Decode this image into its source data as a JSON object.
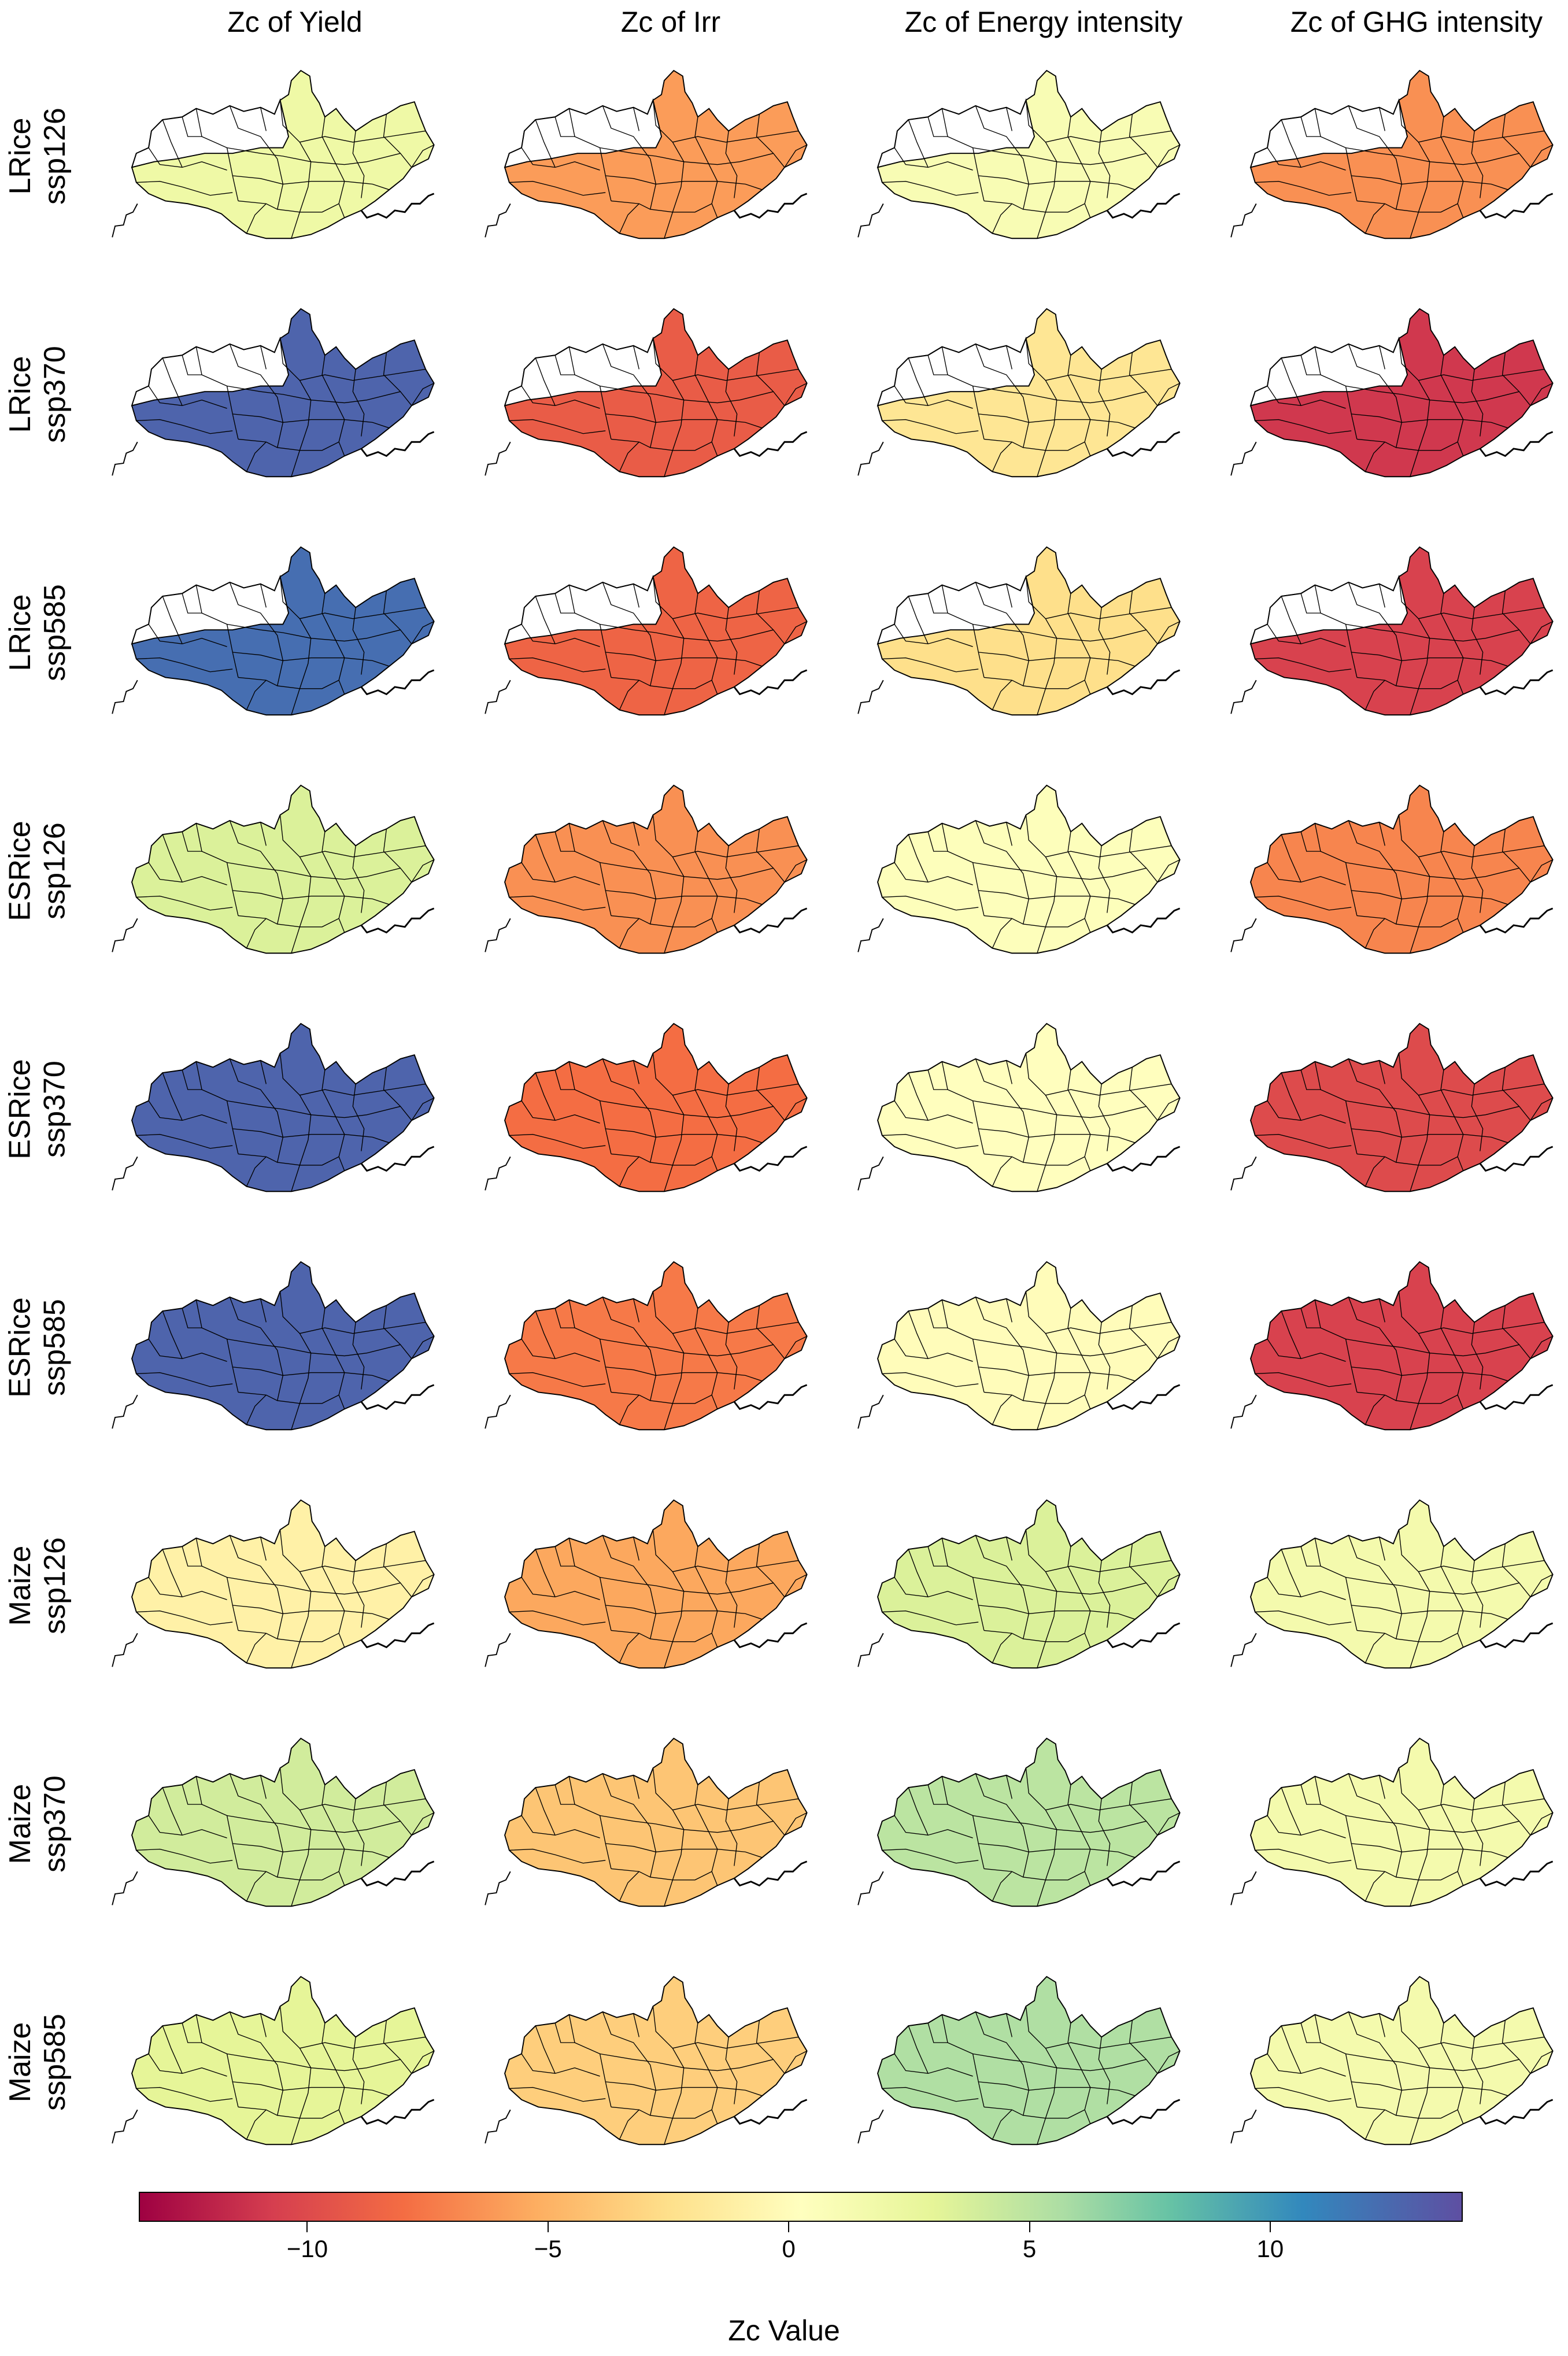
{
  "columns": [
    {
      "title": "Zc of Yield"
    },
    {
      "title": "Zc of Irr"
    },
    {
      "title": "Zc of Energy intensity"
    },
    {
      "title": "Zc of GHG intensity"
    }
  ],
  "rows": [
    {
      "crop": "LRice",
      "scenario": "ssp126",
      "values": [
        2.0,
        -6.0,
        1.0,
        -6.5
      ],
      "masked": true
    },
    {
      "crop": "LRice",
      "scenario": "ssp370",
      "values": [
        13.0,
        -9.0,
        -2.0,
        -11.0
      ],
      "masked": true
    },
    {
      "crop": "LRice",
      "scenario": "ssp585",
      "values": [
        12.5,
        -8.5,
        -2.5,
        -10.5
      ],
      "masked": true
    },
    {
      "crop": "ESRice",
      "scenario": "ssp126",
      "values": [
        3.5,
        -6.5,
        0.5,
        -7.0
      ],
      "masked": false
    },
    {
      "crop": "ESRice",
      "scenario": "ssp370",
      "values": [
        13.0,
        -8.0,
        0.2,
        -10.0
      ],
      "masked": false
    },
    {
      "crop": "ESRice",
      "scenario": "ssp585",
      "values": [
        13.0,
        -7.5,
        0.0,
        -10.5
      ],
      "masked": false
    },
    {
      "crop": "Maize",
      "scenario": "ssp126",
      "values": [
        -1.0,
        -5.5,
        3.5,
        1.5
      ],
      "masked": false
    },
    {
      "crop": "Maize",
      "scenario": "ssp370",
      "values": [
        4.0,
        -4.0,
        5.0,
        1.5
      ],
      "masked": false
    },
    {
      "crop": "Maize",
      "scenario": "ssp585",
      "values": [
        3.0,
        -3.5,
        5.5,
        1.5
      ],
      "masked": false
    }
  ],
  "colorbar": {
    "title": "Zc Value",
    "min": -13.5,
    "max": 14,
    "ticks": [
      "−10",
      "−5",
      "0",
      "5",
      "10"
    ],
    "tick_values": [
      -10,
      -5,
      0,
      5,
      10
    ],
    "colormap": [
      "#9e0142",
      "#d53e4f",
      "#f46d43",
      "#fdae61",
      "#fee08b",
      "#ffffbf",
      "#e6f598",
      "#abdda4",
      "#66c2a5",
      "#3288bd",
      "#5e4fa2"
    ]
  }
}
